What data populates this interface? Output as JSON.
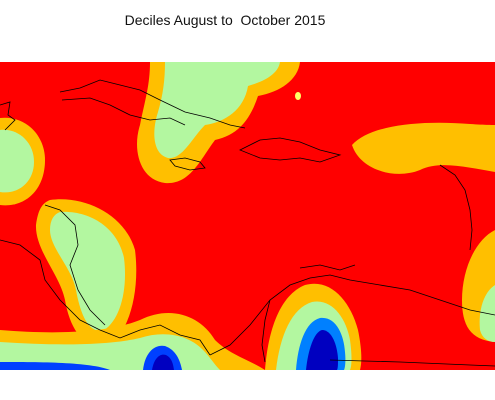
{
  "title": "Deciles August to  October 2015"
}
